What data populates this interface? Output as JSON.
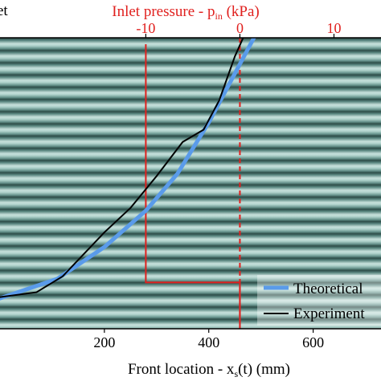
{
  "chart_data": {
    "type": "line",
    "top_axis": {
      "label_main": "Inlet pressure - p",
      "label_sub": "in",
      "label_unit": " (kPa)",
      "ticks": [
        "-10",
        "0",
        "10"
      ],
      "tick_values": [
        -10,
        0,
        10
      ],
      "range": [
        -25.5,
        15
      ],
      "color": "#e0201e"
    },
    "bottom_axis": {
      "label_main": "Front location - x",
      "label_sub": "s",
      "label_unit": "(t) (mm)",
      "ticks": [
        "200",
        "400",
        "600"
      ],
      "tick_values": [
        200,
        400,
        600
      ],
      "range": [
        0,
        730
      ]
    },
    "left_axis_fragment": [
      "et"
    ],
    "inlet_pressure_trace": {
      "points": [
        {
          "x": 200,
          "p": -10,
          "row": 0
        },
        {
          "x": 200,
          "p": -10,
          "row": 19.5
        },
        {
          "x": 400,
          "p": 0,
          "row": 19.5
        },
        {
          "x": 400,
          "p": 0,
          "row": 24
        }
      ],
      "zero_reference": {
        "p": 0,
        "style": "dashed"
      }
    },
    "series": [
      {
        "name": "Theoretical",
        "color": "#5a9bea",
        "points": [
          {
            "x": 0,
            "row": 20.8
          },
          {
            "x": 110,
            "row": 19.2
          },
          {
            "x": 200,
            "row": 16.6
          },
          {
            "x": 280,
            "row": 13.6
          },
          {
            "x": 340,
            "row": 10.6
          },
          {
            "x": 400,
            "row": 6.4
          },
          {
            "x": 450,
            "row": 2.4
          },
          {
            "x": 520,
            "row": -3.2
          }
        ]
      },
      {
        "name": "Experiment",
        "color": "#000000",
        "points": [
          {
            "x": 0,
            "row": 20.7
          },
          {
            "x": 70,
            "row": 20.3
          },
          {
            "x": 120,
            "row": 19
          },
          {
            "x": 160,
            "row": 17.2
          },
          {
            "x": 200,
            "row": 15.4
          },
          {
            "x": 250,
            "row": 13.4
          },
          {
            "x": 300,
            "row": 10.8
          },
          {
            "x": 350,
            "row": 8
          },
          {
            "x": 390,
            "row": 7
          },
          {
            "x": 420,
            "row": 4.6
          },
          {
            "x": 450,
            "row": 1
          },
          {
            "x": 475,
            "row": -1.4
          },
          {
            "x": 495,
            "row": -3.4
          }
        ]
      }
    ],
    "legend": {
      "placement": "bottom-right"
    }
  }
}
